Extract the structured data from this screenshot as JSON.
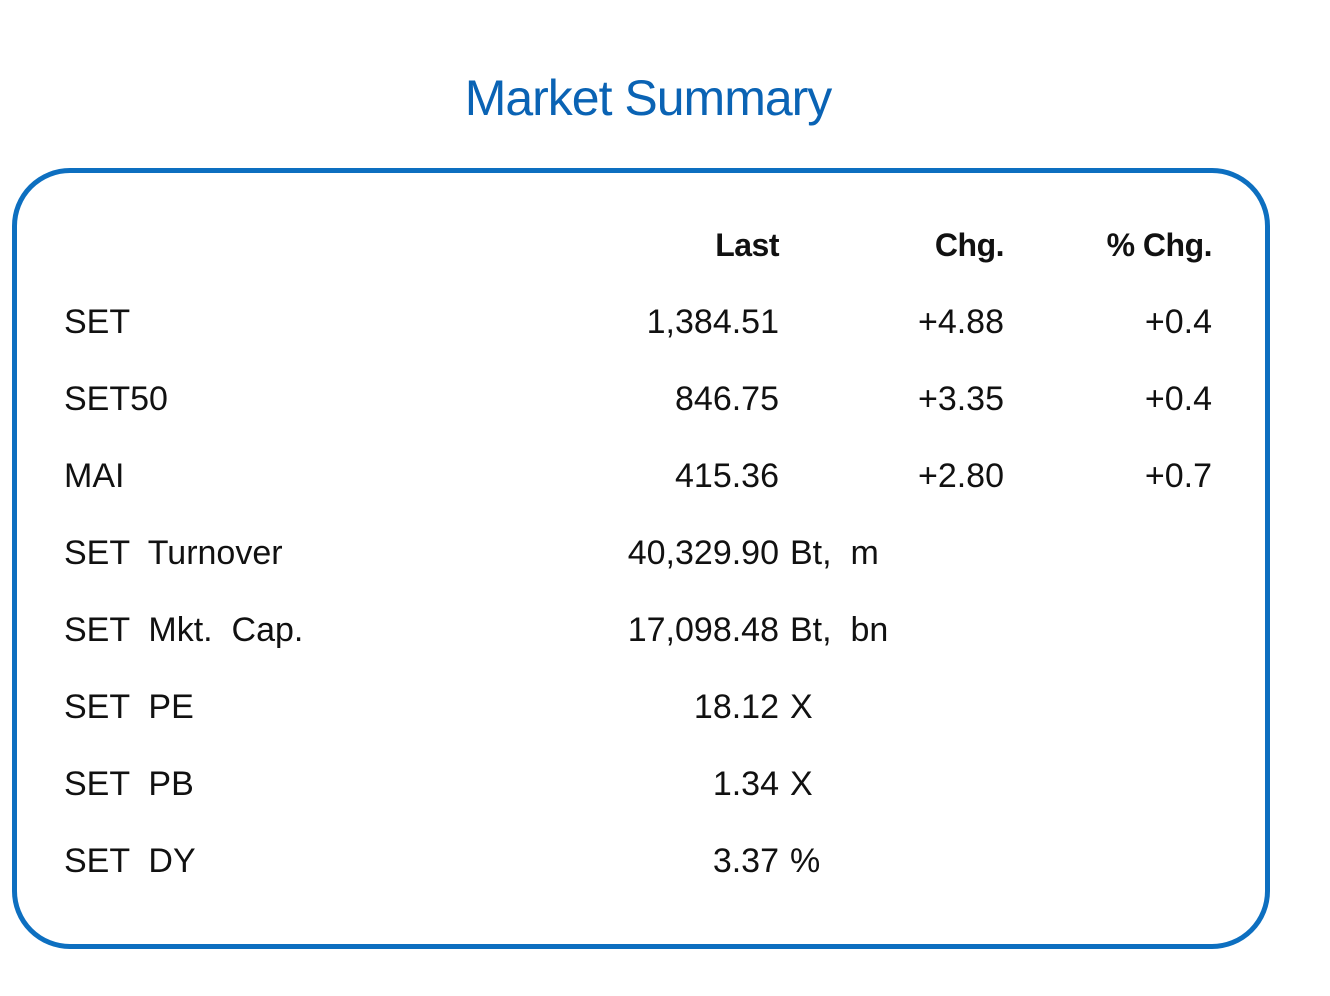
{
  "title": "Market Summary",
  "headers": {
    "last": "Last",
    "chg": "Chg.",
    "pct_chg": "% Chg."
  },
  "rows": [
    {
      "label": "SET",
      "last": "1,384.51",
      "unit": "",
      "chg": "+4.88",
      "pct_chg": "+0.4"
    },
    {
      "label": "SET50",
      "last": "846.75",
      "unit": "",
      "chg": "+3.35",
      "pct_chg": "+0.4"
    },
    {
      "label": "MAI",
      "last": "415.36",
      "unit": "",
      "chg": "+2.80",
      "pct_chg": "+0.7"
    },
    {
      "label": "SET  Turnover",
      "last": "40,329.90",
      "unit": "Bt,  m",
      "chg": "",
      "pct_chg": ""
    },
    {
      "label": "SET  Mkt.  Cap.",
      "last": "17,098.48",
      "unit": "Bt,  bn",
      "chg": "",
      "pct_chg": ""
    },
    {
      "label": "SET  PE",
      "last": "18.12",
      "unit": "X",
      "chg": "",
      "pct_chg": ""
    },
    {
      "label": "SET  PB",
      "last": "1.34",
      "unit": "X",
      "chg": "",
      "pct_chg": ""
    },
    {
      "label": "SET  DY",
      "last": "3.37",
      "unit": "%",
      "chg": "",
      "pct_chg": ""
    }
  ],
  "colors": {
    "title": "#0a63b4",
    "border": "#0d6fc0",
    "text": "#111111"
  }
}
